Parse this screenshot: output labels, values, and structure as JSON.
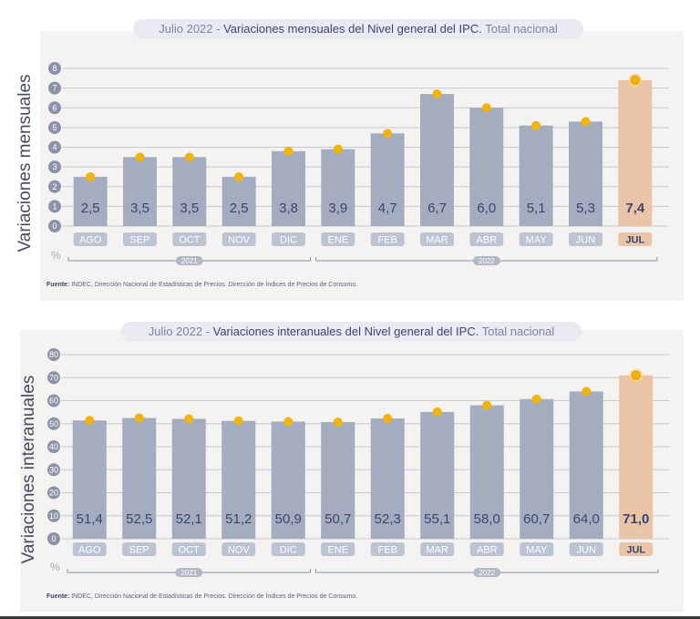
{
  "charts": [
    {
      "title_prefix": "Julio 2022 -",
      "title_main": "Variaciones mensuales del Nivel general del IPC.",
      "title_suffix": "Total nacional",
      "ylabel": "Variaciones mensuales",
      "unit": "%",
      "source_label": "Fuente:",
      "source_text": "INDEC, Dirección Nacional de Estadísticas de Precios. Dirección de Índices de Precios de Consumo.",
      "years": [
        "2021",
        "2022"
      ]
    },
    {
      "title_prefix": "Julio 2022  -",
      "title_main": "Variaciones interanuales del Nivel general del IPC.",
      "title_suffix": "Total nacional",
      "ylabel": "Variaciones interanuales",
      "unit": "%",
      "source_label": "Fuente:",
      "source_text": "INDEC, Dirección Nacional de Estadísticas de Precios. Dirección de Índices de Precios de Consumo.",
      "years": [
        "2021",
        "2022"
      ]
    }
  ],
  "colors": {
    "bar": "#a4adbf",
    "highlight_bar": "#e9c4a6",
    "dot": "#f2b40a",
    "axis_circle": "#8c92a8",
    "month_box": "#bcc3d2",
    "highlight_box": "#e9c4a6"
  },
  "chart_data": [
    {
      "type": "bar",
      "title": "Variaciones mensuales del Nivel general del IPC. Total nacional",
      "xlabel": "",
      "ylabel": "Variaciones mensuales",
      "categories": [
        "AGO",
        "SEP",
        "OCT",
        "NOV",
        "DIC",
        "ENE",
        "FEB",
        "MAR",
        "ABR",
        "MAY",
        "JUN",
        "JUL"
      ],
      "values": [
        2.5,
        3.5,
        3.5,
        2.5,
        3.8,
        3.9,
        4.7,
        6.7,
        6.0,
        5.1,
        5.3,
        7.4
      ],
      "value_labels": [
        "2,5",
        "3,5",
        "3,5",
        "2,5",
        "3,8",
        "3,9",
        "4,7",
        "6,7",
        "6,0",
        "5,1",
        "5,3",
        "7,4"
      ],
      "yticks": [
        "0",
        "1",
        "2",
        "3",
        "4",
        "5",
        "6",
        "7",
        "8"
      ],
      "ylim": [
        0,
        8
      ],
      "highlight_index": 11,
      "grid": true
    },
    {
      "type": "bar",
      "title": "Variaciones interanuales del Nivel general del IPC. Total nacional",
      "xlabel": "",
      "ylabel": "Variaciones interanuales",
      "categories": [
        "AGO",
        "SEP",
        "OCT",
        "NOV",
        "DIC",
        "ENE",
        "FEB",
        "MAR",
        "ABR",
        "MAY",
        "JUN",
        "JUL"
      ],
      "values": [
        51.4,
        52.5,
        52.1,
        51.2,
        50.9,
        50.7,
        52.3,
        55.1,
        58.0,
        60.7,
        64.0,
        71.0
      ],
      "value_labels": [
        "51,4",
        "52,5",
        "52,1",
        "51,2",
        "50,9",
        "50,7",
        "52,3",
        "55,1",
        "58,0",
        "60,7",
        "64,0",
        "71,0"
      ],
      "yticks": [
        "0",
        "10",
        "20",
        "30",
        "40",
        "50",
        "60",
        "70",
        "80"
      ],
      "ylim": [
        0,
        80
      ],
      "highlight_index": 11,
      "grid": true
    }
  ]
}
